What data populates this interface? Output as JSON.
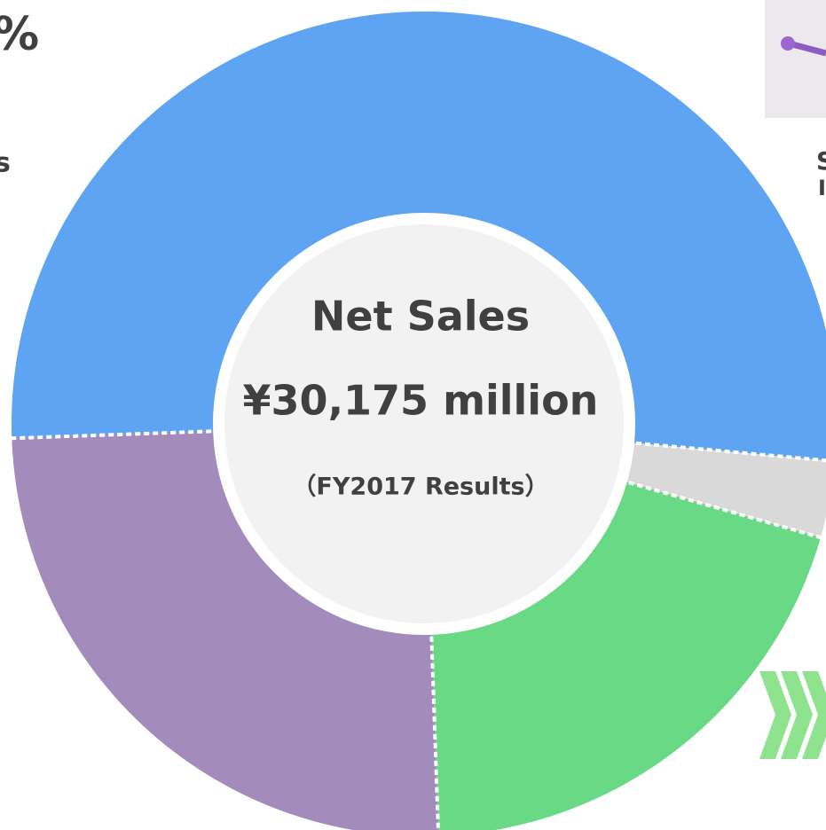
{
  "chart_data": {
    "type": "pie",
    "center_text": [
      "Net Sales",
      "¥30,175 million",
      "（FY2017 Results）"
    ],
    "side_fragments": [
      "%",
      "s",
      "S",
      "I"
    ],
    "categories": [
      null,
      null,
      null,
      null
    ],
    "values": [
      52,
      3,
      20,
      25
    ],
    "colors": [
      "#5ea4f2",
      "#d9d9d9",
      "#6ad986",
      "#a38cbb"
    ]
  }
}
